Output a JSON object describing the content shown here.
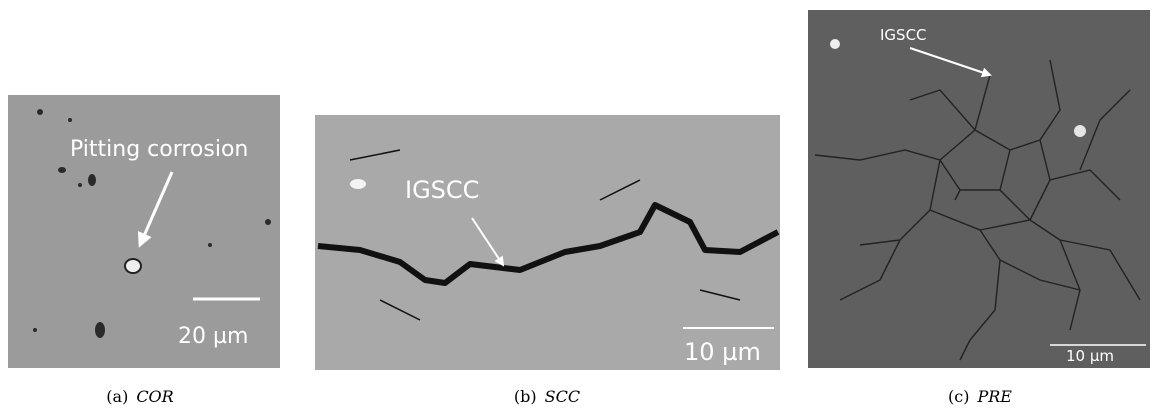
{
  "figure": {
    "panels": [
      {
        "annotation": "Pitting corrosion",
        "scale_bar": "20 µm",
        "label": "(a)",
        "caption": "COR"
      },
      {
        "annotation": "IGSCC",
        "scale_bar": "10 µm",
        "label": "(b)",
        "caption": "SCC"
      },
      {
        "annotation": "IGSCC",
        "scale_bar": "10 µm",
        "label": "(c)",
        "caption": "PRE"
      }
    ]
  }
}
